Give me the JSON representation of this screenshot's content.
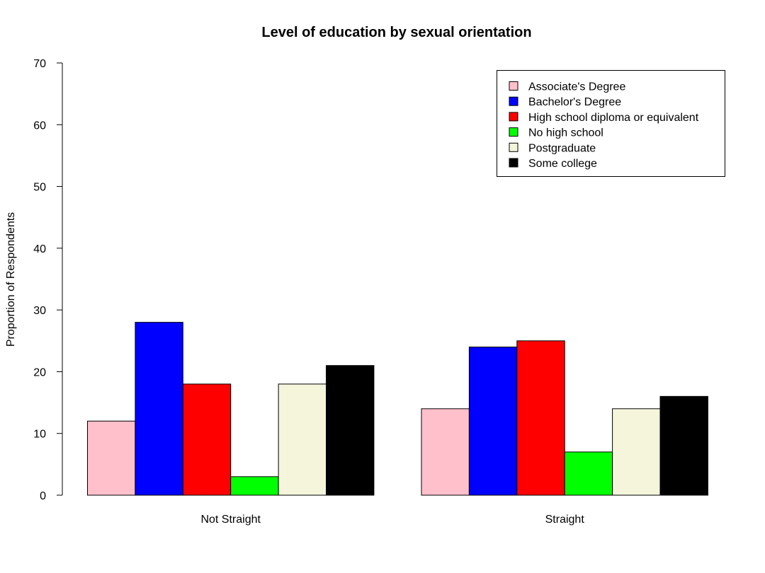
{
  "chart_data": {
    "type": "bar",
    "title": "Level of education by sexual orientation",
    "xlabel": "",
    "ylabel": "Proportion of Respondents",
    "ylim": [
      0,
      70
    ],
    "yticks": [
      0,
      10,
      20,
      30,
      40,
      50,
      60,
      70
    ],
    "grid": false,
    "legend_position": "top-right",
    "categories": [
      "Not Straight",
      "Straight"
    ],
    "series": [
      {
        "name": "Associate's Degree",
        "color": "#ffc0cb",
        "values": [
          12,
          14
        ]
      },
      {
        "name": "Bachelor's Degree",
        "color": "#0000ff",
        "values": [
          28,
          24
        ]
      },
      {
        "name": "High school diploma or equivalent",
        "color": "#ff0000",
        "values": [
          18,
          25
        ]
      },
      {
        "name": "No high school",
        "color": "#00ff00",
        "values": [
          3,
          7
        ]
      },
      {
        "name": "Postgraduate",
        "color": "#f5f5dc",
        "values": [
          18,
          14
        ]
      },
      {
        "name": "Some college",
        "color": "#000000",
        "values": [
          21,
          16
        ]
      }
    ]
  }
}
